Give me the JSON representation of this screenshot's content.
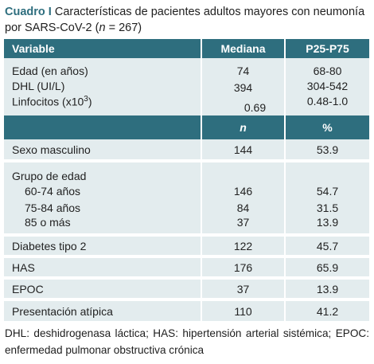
{
  "caption": {
    "label": "Cuadro I",
    "text_before": " Características de pacientes adultos mayores con neumonía por SARS-CoV-2 (",
    "n_italic": "n",
    "text_after": " = 267)"
  },
  "header1": {
    "variable": "Variable",
    "median": "Mediana",
    "p": "P25-P75"
  },
  "section1": [
    {
      "label": "Edad (en años)",
      "median": "74",
      "range": "68-80"
    },
    {
      "label": "DHL (UI/L)",
      "median": "394",
      "range": "304-542"
    },
    {
      "label_base": "Linfocitos (x10",
      "label_sup": "3",
      "label_end": ")",
      "median": "0.69",
      "range": "0.48-1.0"
    }
  ],
  "header2": {
    "n": "n",
    "pct": "%"
  },
  "rows": {
    "sexo": {
      "label": "Sexo masculino",
      "n": "144",
      "pct": "53.9"
    },
    "grupo_title": "Grupo de edad",
    "grupo": [
      {
        "label": "60-74 años",
        "n": "146",
        "pct": "54.7"
      },
      {
        "label": "75-84 años",
        "n": "84",
        "pct": "31.5"
      },
      {
        "label": "85 o más",
        "n": "37",
        "pct": "13.9"
      }
    ],
    "diabetes": {
      "label": "Diabetes tipo 2",
      "n": "122",
      "pct": "45.7"
    },
    "has": {
      "label": "HAS",
      "n": "176",
      "pct": "65.9"
    },
    "epoc": {
      "label": "EPOC",
      "n": "37",
      "pct": "13.9"
    },
    "atipica": {
      "label": "Presentación atípica",
      "n": "110",
      "pct": "41.2"
    }
  },
  "footnote": "DHL: deshidrogenasa láctica; HAS: hipertensión arterial sistémica; EPOC: enfermedad pulmonar obstructiva crónica",
  "colors": {
    "header": "#2e6e7e",
    "body": "#e3ecee",
    "label": "#2e6e7e"
  }
}
